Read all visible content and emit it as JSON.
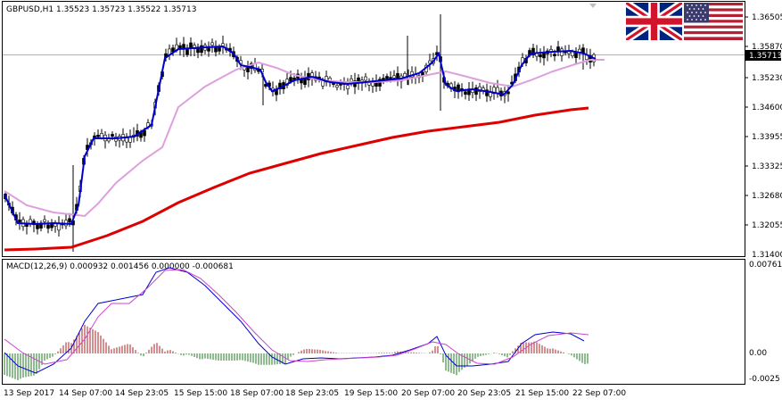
{
  "window": {
    "title": "GBPUSD,H1  1.35523 1.35723 1.35522 1.35713"
  },
  "main_panel": {
    "price_axis_ticks": [
      "1.36505",
      "1.35870",
      "1.35230",
      "1.34600",
      "1.33955",
      "1.33325",
      "1.32680",
      "1.32055",
      "1.31400"
    ],
    "current_price_label": "1.35713",
    "flags": [
      "uk-flag-icon",
      "us-flag-icon"
    ]
  },
  "macd_panel": {
    "title": "MACD(12,26,9) 0.000932 0.001456 0.000000 -0.000681",
    "axis_ticks": [
      "0.007619",
      "0.00",
      "-0.0025"
    ]
  },
  "time_axis": {
    "labels": [
      "13 Sep 2017",
      "14 Sep 07:00",
      "14 Sep 23:05",
      "15 Sep 15:00",
      "18 Sep 07:00",
      "18 Sep 23:05",
      "19 Sep 15:00",
      "20 Sep 07:00",
      "20 Sep 23:05",
      "21 Sep 15:00",
      "22 Sep 07:00"
    ]
  },
  "colors": {
    "candles": "#000000",
    "fast_ma": "#0000cc",
    "slow_ma": "#dda0dd",
    "long_ma": "#dd0000",
    "macd_line": "#0000cc",
    "signal_line": "#cc44cc",
    "hist_up": "#aa2222",
    "hist_down": "#227722",
    "grid_border": "#000000",
    "price_line": "#b0b0b0"
  }
}
